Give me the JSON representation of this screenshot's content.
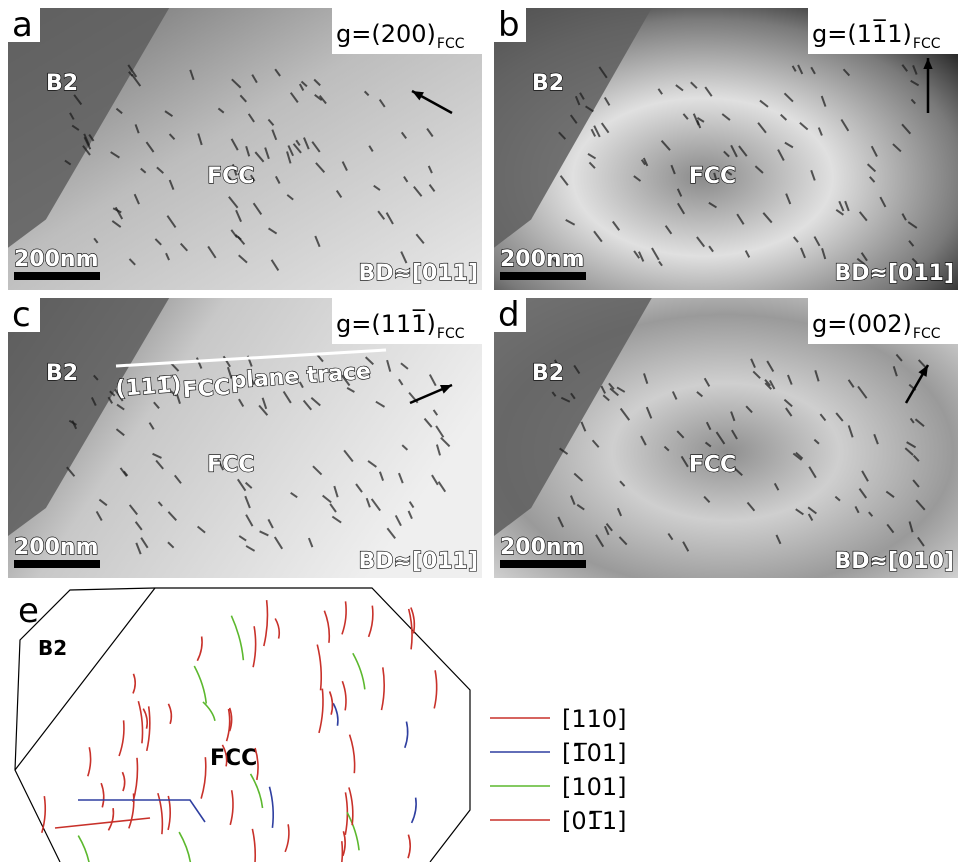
{
  "panels": [
    {
      "label": "a",
      "phases": [
        "B2",
        "FCC"
      ],
      "scale_bar": "200nm",
      "g_vector": {
        "text": "g=(200)",
        "subscript": "FCC"
      },
      "beam_direction": "BD≈[011]"
    },
    {
      "label": "b",
      "phases": [
        "B2",
        "FCC"
      ],
      "scale_bar": "200nm",
      "g_vector": {
        "text": "g=(11̅1)",
        "subscript": "FCC"
      },
      "beam_direction": "BD≈[011]"
    },
    {
      "label": "c",
      "phases": [
        "B2",
        "FCC"
      ],
      "scale_bar": "200nm",
      "g_vector": {
        "text": "g=(111̅)",
        "subscript": "FCC"
      },
      "beam_direction": "BD≈[011]",
      "plane_trace": {
        "text": "(111̅)",
        "subscript": "FCC",
        "suffix": " plane trace"
      }
    },
    {
      "label": "d",
      "phases": [
        "B2",
        "FCC"
      ],
      "scale_bar": "200nm",
      "g_vector": {
        "text": "g=(002)",
        "subscript": "FCC"
      },
      "beam_direction": "BD≈[010]"
    }
  ],
  "panel_e": {
    "label": "e",
    "phases": [
      "B2",
      "FCC"
    ],
    "legend": [
      {
        "label": "[110]",
        "color": "#c8312a"
      },
      {
        "label": "[1̅01]",
        "color": "#2f3fa0"
      },
      {
        "label": "[101]",
        "color": "#5cb82e"
      },
      {
        "label": "[01̅1]",
        "color": "#c8312a"
      }
    ]
  }
}
